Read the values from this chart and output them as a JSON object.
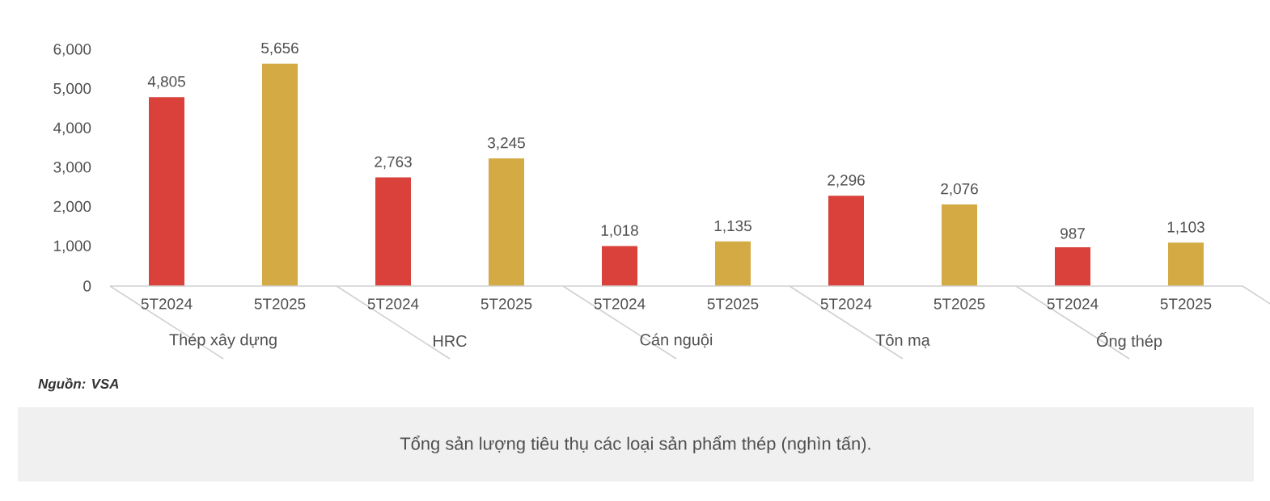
{
  "chart_data": {
    "type": "bar",
    "categories": [
      "Thép xây dựng",
      "HRC",
      "Cán nguội",
      "Tôn mạ",
      "Ống thép"
    ],
    "series": [
      {
        "name": "5T2024",
        "color": "#d9413a",
        "values": [
          4805,
          2763,
          1018,
          2296,
          987
        ],
        "value_labels": [
          "4,805",
          "2,763",
          "1,018",
          "2,296",
          "987"
        ]
      },
      {
        "name": "5T2025",
        "color": "#d4aa45",
        "values": [
          5656,
          3245,
          1135,
          2076,
          1103
        ],
        "value_labels": [
          "5,656",
          "3,245",
          "1,135",
          "2,076",
          "1,103"
        ]
      }
    ],
    "ylim": [
      0,
      6000
    ],
    "yticks": [
      {
        "value": 0,
        "label": "0"
      },
      {
        "value": 1000,
        "label": "1,000"
      },
      {
        "value": 2000,
        "label": "2,000"
      },
      {
        "value": 3000,
        "label": "3,000"
      },
      {
        "value": 4000,
        "label": "4,000"
      },
      {
        "value": 5000,
        "label": "5,000"
      },
      {
        "value": 6000,
        "label": "6,000"
      }
    ],
    "annotations": [
      "Nguồn: VSA",
      "Tổng sản lượng tiêu thụ các loại sản phẩm thép (nghìn tấn)."
    ]
  }
}
